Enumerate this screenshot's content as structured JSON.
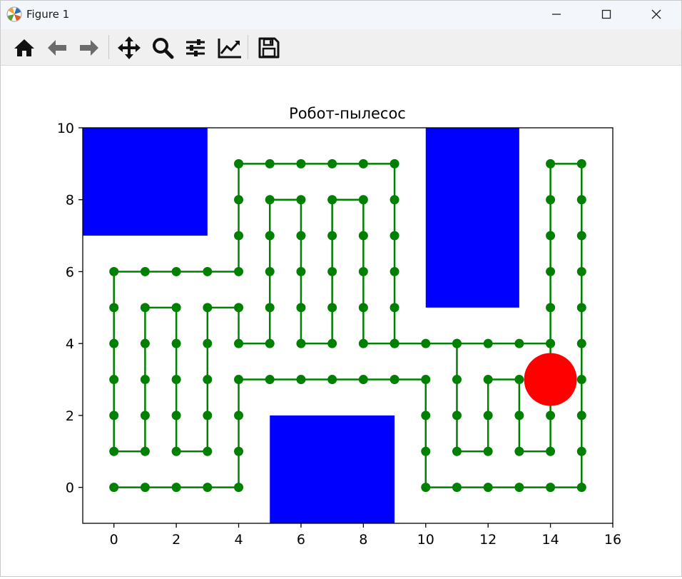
{
  "window": {
    "title": "Figure 1"
  },
  "toolbar": {
    "buttons": [
      {
        "name": "home",
        "icon": "home-icon",
        "tooltip": "Reset original view"
      },
      {
        "name": "back",
        "icon": "arrow-left-icon",
        "tooltip": "Back"
      },
      {
        "name": "forward",
        "icon": "arrow-right-icon",
        "tooltip": "Forward"
      },
      {
        "name": "pan",
        "icon": "move-icon",
        "tooltip": "Pan"
      },
      {
        "name": "zoom",
        "icon": "magnifier-icon",
        "tooltip": "Zoom"
      },
      {
        "name": "configure",
        "icon": "sliders-icon",
        "tooltip": "Configure subplots"
      },
      {
        "name": "edit-axes",
        "icon": "chart-line-icon",
        "tooltip": "Edit axis"
      },
      {
        "name": "save",
        "icon": "floppy-disk-icon",
        "tooltip": "Save the figure"
      }
    ]
  },
  "chart_data": {
    "type": "line",
    "title": "Робот-пылесос",
    "xlabel": "",
    "ylabel": "",
    "xlim": [
      -1,
      16
    ],
    "ylim": [
      -1,
      10
    ],
    "xticks": [
      0,
      2,
      4,
      6,
      8,
      10,
      12,
      14,
      16
    ],
    "yticks": [
      0,
      2,
      4,
      6,
      8,
      10
    ],
    "grid": false,
    "obstacles": [
      {
        "x0": -1,
        "x1": 3,
        "y0": 7,
        "y1": 10,
        "color": "#0000ff"
      },
      {
        "x0": 10,
        "x1": 13,
        "y0": 5,
        "y1": 10,
        "color": "#0000ff"
      },
      {
        "x0": 5,
        "x1": 9,
        "y0": -1,
        "y1": 2,
        "color": "#0000ff"
      }
    ],
    "path_color": "#008000",
    "robot": {
      "x": 14,
      "y": 3,
      "color": "#ff0000"
    },
    "path": [
      [
        0,
        0
      ],
      [
        1,
        0
      ],
      [
        2,
        0
      ],
      [
        3,
        0
      ],
      [
        4,
        0
      ],
      [
        4,
        1
      ],
      [
        4,
        2
      ],
      [
        4,
        3
      ],
      [
        5,
        3
      ],
      [
        6,
        3
      ],
      [
        7,
        3
      ],
      [
        8,
        3
      ],
      [
        9,
        3
      ],
      [
        10,
        3
      ],
      [
        10,
        2
      ],
      [
        10,
        1
      ],
      [
        10,
        0
      ],
      [
        11,
        0
      ],
      [
        12,
        0
      ],
      [
        13,
        0
      ],
      [
        14,
        0
      ],
      [
        15,
        0
      ],
      [
        15,
        1
      ],
      [
        15,
        2
      ],
      [
        15,
        3
      ],
      [
        15,
        4
      ],
      [
        15,
        5
      ],
      [
        15,
        6
      ],
      [
        15,
        7
      ],
      [
        15,
        8
      ],
      [
        15,
        9
      ],
      [
        14,
        9
      ],
      [
        14,
        8
      ],
      [
        14,
        7
      ],
      [
        14,
        6
      ],
      [
        14,
        5
      ],
      [
        14,
        4
      ],
      [
        14,
        3
      ],
      [
        14,
        2
      ],
      [
        14,
        1
      ],
      [
        13,
        1
      ],
      [
        13,
        2
      ],
      [
        13,
        3
      ],
      [
        12,
        3
      ],
      [
        12,
        2
      ],
      [
        12,
        1
      ],
      [
        11,
        1
      ],
      [
        11,
        2
      ],
      [
        11,
        3
      ],
      [
        11,
        4
      ],
      [
        12,
        4
      ],
      [
        13,
        4
      ],
      [
        14,
        4
      ],
      [
        11,
        4
      ],
      [
        10,
        4
      ],
      [
        9,
        4
      ],
      [
        8,
        4
      ],
      [
        8,
        5
      ],
      [
        8,
        6
      ],
      [
        8,
        7
      ],
      [
        8,
        8
      ],
      [
        7,
        8
      ],
      [
        7,
        7
      ],
      [
        7,
        6
      ],
      [
        7,
        5
      ],
      [
        7,
        4
      ],
      [
        6,
        4
      ],
      [
        6,
        5
      ],
      [
        6,
        6
      ],
      [
        6,
        7
      ],
      [
        6,
        8
      ],
      [
        5,
        8
      ],
      [
        5,
        7
      ],
      [
        5,
        6
      ],
      [
        5,
        5
      ],
      [
        5,
        4
      ],
      [
        4,
        4
      ],
      [
        4,
        5
      ],
      [
        3,
        5
      ],
      [
        3,
        4
      ],
      [
        3,
        3
      ],
      [
        3,
        2
      ],
      [
        3,
        1
      ],
      [
        2,
        1
      ],
      [
        2,
        2
      ],
      [
        2,
        3
      ],
      [
        2,
        4
      ],
      [
        2,
        5
      ],
      [
        1,
        5
      ],
      [
        1,
        4
      ],
      [
        1,
        3
      ],
      [
        1,
        2
      ],
      [
        1,
        1
      ],
      [
        0,
        1
      ],
      [
        0,
        2
      ],
      [
        0,
        3
      ],
      [
        0,
        4
      ],
      [
        0,
        5
      ],
      [
        0,
        6
      ],
      [
        1,
        6
      ],
      [
        2,
        6
      ],
      [
        3,
        6
      ],
      [
        4,
        6
      ],
      [
        4,
        7
      ],
      [
        4,
        8
      ],
      [
        4,
        9
      ],
      [
        5,
        9
      ],
      [
        6,
        9
      ],
      [
        7,
        9
      ],
      [
        8,
        9
      ],
      [
        9,
        9
      ],
      [
        9,
        8
      ],
      [
        9,
        7
      ],
      [
        9,
        6
      ],
      [
        9,
        5
      ],
      [
        9,
        4
      ]
    ]
  }
}
